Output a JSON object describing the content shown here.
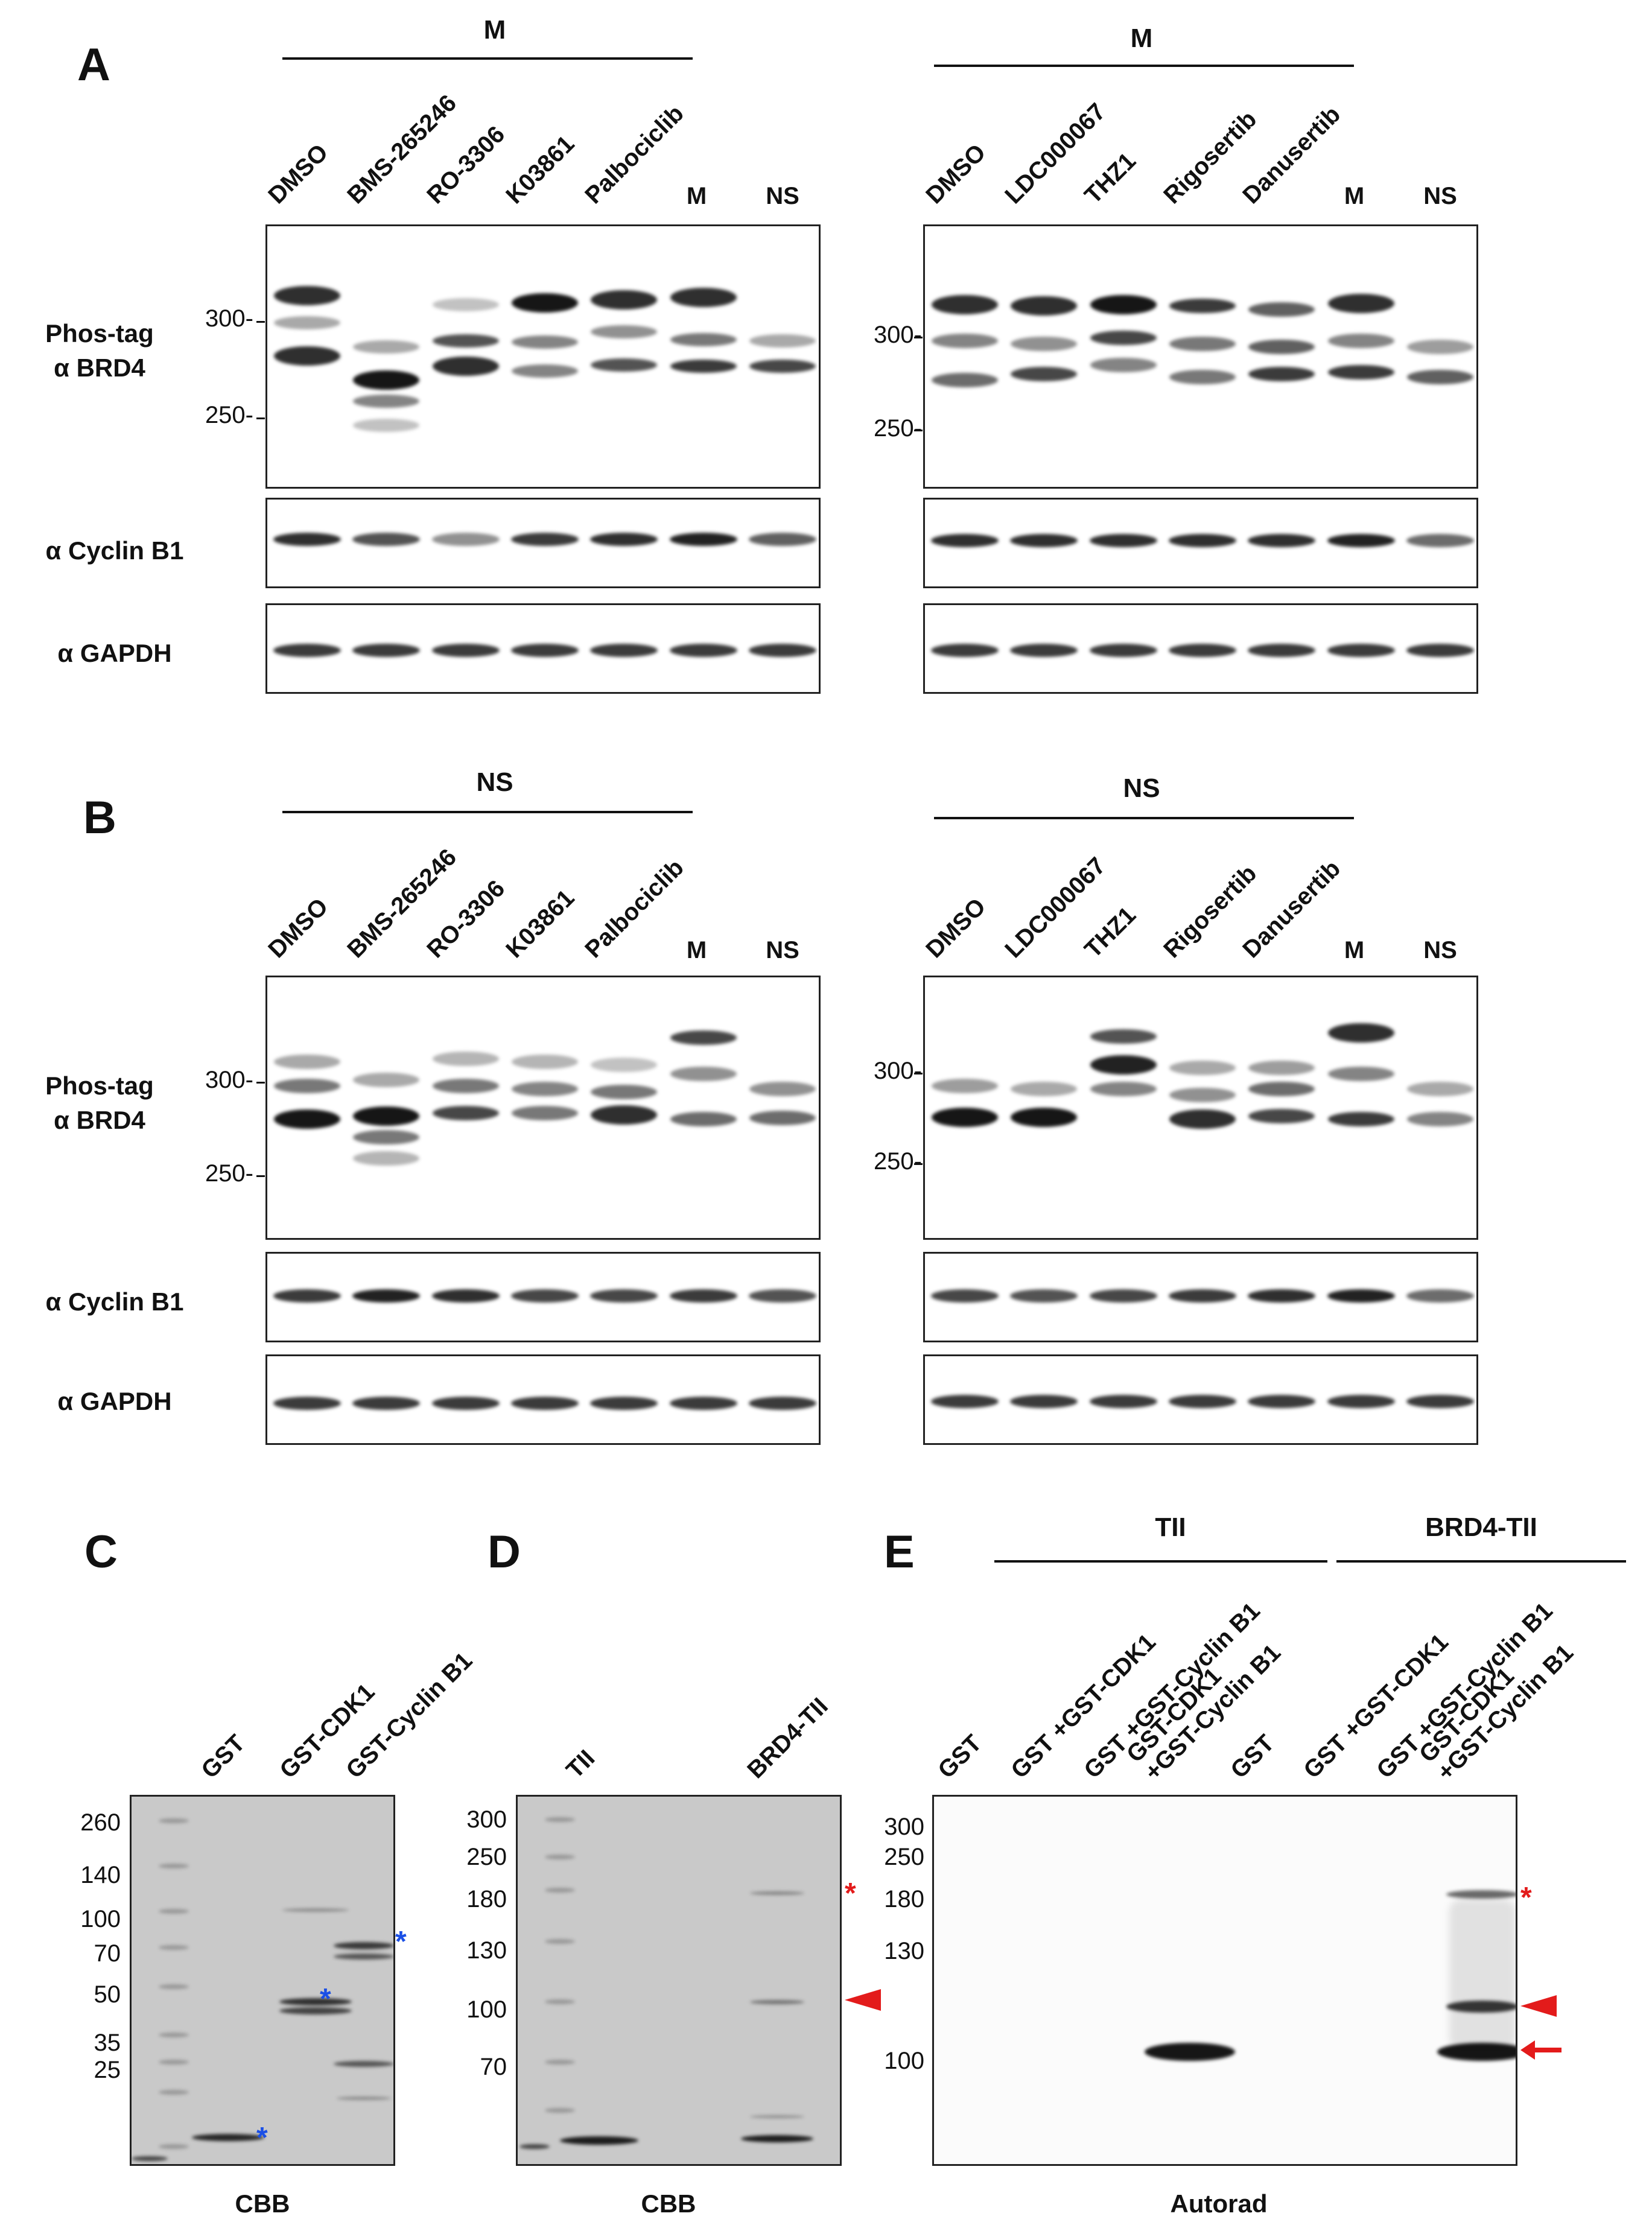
{
  "panel_labels": {
    "a": "A",
    "b": "B",
    "c": "C",
    "d": "D",
    "e": "E"
  },
  "rows": {
    "phos": "Phos-tag\nα BRD4",
    "cyclin": "α Cyclin B1",
    "gapdh": "α GAPDH"
  },
  "panel_A": {
    "group": "M",
    "lanes_left": [
      "DMSO",
      "BMS-265246",
      "RO-3306",
      "K03861",
      "Palbociclib",
      "M",
      "NS"
    ],
    "lanes_right": [
      "DMSO",
      "LDC000067",
      "THZ1",
      "Rigosertib",
      "Danusertib",
      "M",
      "NS"
    ],
    "markers": [
      "300-",
      "250-"
    ]
  },
  "panel_B": {
    "group": "NS",
    "lanes_left": [
      "DMSO",
      "BMS-265246",
      "RO-3306",
      "K03861",
      "Palbociclib",
      "M",
      "NS"
    ],
    "lanes_right": [
      "DMSO",
      "LDC000067",
      "THZ1",
      "Rigosertib",
      "Danusertib",
      "M",
      "NS"
    ],
    "markers": [
      "300-",
      "250-"
    ]
  },
  "panel_C": {
    "lanes": [
      "GST",
      "GST-CDK1",
      "GST-Cyclin B1"
    ],
    "markers": [
      "260",
      "140",
      "100",
      "70",
      "50",
      "35",
      "25"
    ],
    "caption": "CBB",
    "asterisk": "*",
    "asterisk_color": "#1a4fe6"
  },
  "panel_D": {
    "lanes": [
      "TII",
      "BRD4-TII"
    ],
    "markers": [
      "300",
      "250",
      "180",
      "130",
      "100",
      "70"
    ],
    "caption": "CBB",
    "asterisk": "*",
    "asterisk_color": "#e31b1b"
  },
  "panel_E": {
    "group_left": "TII",
    "group_right": "BRD4-TII",
    "lanes_single": [
      "GST",
      "GST +GST-CDK1",
      "GST +GST-Cyclin B1"
    ],
    "lane_double": [
      "GST-CDK1",
      "+GST-Cyclin B1"
    ],
    "markers": [
      "300",
      "250",
      "180",
      "130",
      "100"
    ],
    "caption": "Autorad",
    "asterisk": "*",
    "marker_color": "#e31b1b"
  }
}
